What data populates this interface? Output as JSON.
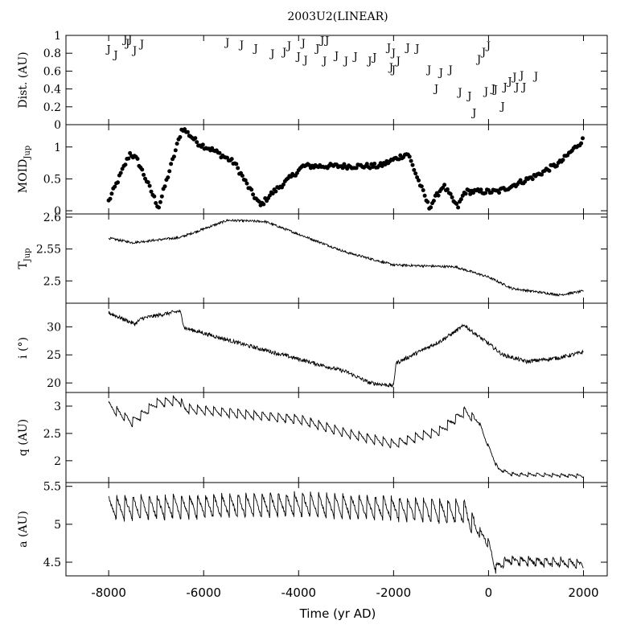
{
  "figure": {
    "title": "2003U2(LINEAR)",
    "xlabel": "Time (yr AD)",
    "xticks": [
      -8000,
      -6000,
      -4000,
      -2000,
      0,
      2000
    ],
    "xlim": [
      -8900,
      2500
    ]
  },
  "chart_data": [
    {
      "id": "dist",
      "type": "scatter",
      "marker": "J",
      "ylabel": "Dist. (AU)",
      "ylim": [
        0,
        1
      ],
      "yticks": [
        0,
        0.2,
        0.4,
        0.6,
        0.8,
        1
      ],
      "x": [
        -8000,
        -7850,
        -7650,
        -7600,
        -7550,
        -7450,
        -7300,
        -5500,
        -5200,
        -4900,
        -4550,
        -4300,
        -4200,
        -4000,
        -3900,
        -3850,
        -3600,
        -3500,
        -3450,
        -3400,
        -3200,
        -3000,
        -2800,
        -2500,
        -2400,
        -2100,
        -2050,
        -2000,
        -2000,
        -1900,
        -1700,
        -1500,
        -1250,
        -1100,
        -1000,
        -800,
        -600,
        -400,
        -300,
        -200,
        -100,
        -50,
        0,
        100,
        150,
        300,
        350,
        450,
        550,
        600,
        700,
        750,
        1000
      ],
      "y": [
        0.85,
        0.79,
        0.96,
        0.92,
        0.96,
        0.84,
        0.91,
        0.93,
        0.9,
        0.86,
        0.8,
        0.82,
        0.89,
        0.77,
        0.92,
        0.73,
        0.86,
        0.95,
        0.72,
        0.95,
        0.78,
        0.72,
        0.77,
        0.72,
        0.76,
        0.87,
        0.65,
        0.62,
        0.81,
        0.72,
        0.87,
        0.86,
        0.62,
        0.41,
        0.59,
        0.62,
        0.37,
        0.33,
        0.14,
        0.74,
        0.82,
        0.38,
        0.89,
        0.41,
        0.4,
        0.21,
        0.43,
        0.49,
        0.54,
        0.43,
        0.56,
        0.43,
        0.55
      ]
    },
    {
      "id": "moid",
      "type": "scatter",
      "marker": "dot",
      "ylabel": "MOID_Jup",
      "ylim": [
        -0.05,
        1.35
      ],
      "yticks": [
        0,
        0.5,
        1
      ],
      "keypoints": [
        [
          -8000,
          0.15
        ],
        [
          -7550,
          0.9
        ],
        [
          -7400,
          0.8
        ],
        [
          -6950,
          0.05
        ],
        [
          -6450,
          1.3
        ],
        [
          -6100,
          1.05
        ],
        [
          -5800,
          0.95
        ],
        [
          -5350,
          0.75
        ],
        [
          -5000,
          0.3
        ],
        [
          -4800,
          0.08
        ],
        [
          -4600,
          0.25
        ],
        [
          -4200,
          0.5
        ],
        [
          -3900,
          0.7
        ],
        [
          -2300,
          0.7
        ],
        [
          -1700,
          0.9
        ],
        [
          -1250,
          0.05
        ],
        [
          -950,
          0.4
        ],
        [
          -650,
          0.05
        ],
        [
          -500,
          0.3
        ],
        [
          200,
          0.3
        ],
        [
          1000,
          0.55
        ],
        [
          1500,
          0.75
        ],
        [
          2000,
          1.12
        ]
      ],
      "scatter": 0.04
    },
    {
      "id": "tjup",
      "type": "line",
      "ylabel": "T_Jup",
      "ylim": [
        2.465,
        2.605
      ],
      "yticks": [
        2.5,
        2.55,
        2.6
      ],
      "keypoints": [
        [
          -8000,
          2.567
        ],
        [
          -7500,
          2.56
        ],
        [
          -6500,
          2.568
        ],
        [
          -5500,
          2.595
        ],
        [
          -4700,
          2.593
        ],
        [
          -3000,
          2.545
        ],
        [
          -2000,
          2.525
        ],
        [
          -700,
          2.522
        ],
        [
          0,
          2.506
        ],
        [
          500,
          2.488
        ],
        [
          1500,
          2.478
        ],
        [
          2000,
          2.484
        ]
      ],
      "noise": 0.0018
    },
    {
      "id": "inc",
      "type": "line",
      "ylabel": "i (°)",
      "ylim": [
        18.3,
        34.2
      ],
      "yticks": [
        20,
        25,
        30
      ],
      "keypoints": [
        [
          -8000,
          32.5
        ],
        [
          -7450,
          30.5
        ],
        [
          -7300,
          31.5
        ],
        [
          -6500,
          32.8
        ],
        [
          -6400,
          29.8
        ],
        [
          -5000,
          26.5
        ],
        [
          -3000,
          22
        ],
        [
          -2500,
          20
        ],
        [
          -2000,
          19.5
        ],
        [
          -1950,
          23.5
        ],
        [
          -1000,
          27.5
        ],
        [
          -500,
          30.3
        ],
        [
          -400,
          29.5
        ],
        [
          0,
          27
        ],
        [
          300,
          25
        ],
        [
          800,
          23.8
        ],
        [
          1500,
          24.5
        ],
        [
          2000,
          25.5
        ]
      ],
      "noise": 0.35
    },
    {
      "id": "q",
      "type": "line",
      "ylabel": "q (AU)",
      "ylim": [
        1.6,
        3.25
      ],
      "yticks": [
        2,
        2.5,
        3
      ],
      "keypoints": [
        [
          -8000,
          3.0
        ],
        [
          -7500,
          2.7
        ],
        [
          -7000,
          3.05
        ],
        [
          -6500,
          3.1
        ],
        [
          -6400,
          2.95
        ],
        [
          -4000,
          2.75
        ],
        [
          -3000,
          2.5
        ],
        [
          -2000,
          2.3
        ],
        [
          -1000,
          2.55
        ],
        [
          -500,
          2.9
        ],
        [
          -200,
          2.7
        ],
        [
          0,
          2.25
        ],
        [
          200,
          1.85
        ],
        [
          500,
          1.75
        ],
        [
          2000,
          1.72
        ]
      ],
      "sawtooth": 0.18,
      "sawtooth_period": 170
    },
    {
      "id": "a",
      "type": "line",
      "ylabel": "a (AU)",
      "ylim": [
        4.32,
        5.55
      ],
      "yticks": [
        4.5,
        5,
        5.5
      ],
      "keypoints": [
        [
          -8000,
          5.2
        ],
        [
          -6500,
          5.22
        ],
        [
          -4000,
          5.25
        ],
        [
          -2000,
          5.2
        ],
        [
          -500,
          5.15
        ],
        [
          -400,
          5.05
        ],
        [
          0,
          4.75
        ],
        [
          150,
          4.42
        ],
        [
          400,
          4.52
        ],
        [
          2000,
          4.48
        ]
      ],
      "sawtooth": 0.33,
      "sawtooth_period": 170
    }
  ]
}
